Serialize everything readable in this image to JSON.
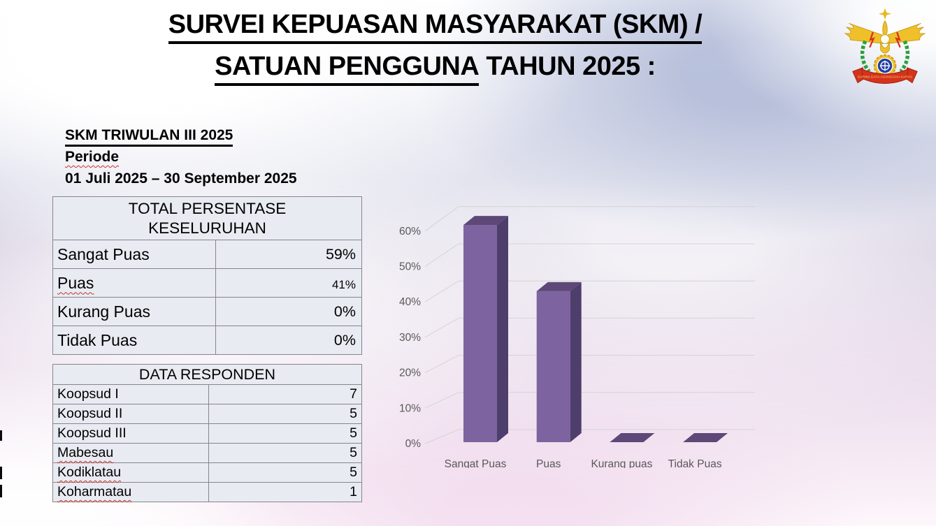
{
  "title": {
    "line1": "SURVEI KEPUASAN MASYARAKAT (SKM) /",
    "line2_underlined": "SATUAN PENGGUNA",
    "line2_rest": " TAHUN 2025 :"
  },
  "logo": {
    "motto": "SARWA DATA ASANGGHA KARYA"
  },
  "period": {
    "heading": "SKM TRIWULAN III 2025",
    "label": "Periode",
    "range": "01 Juli 2025 – 30 September 2025"
  },
  "tables": {
    "persentase": {
      "header": "TOTAL PERSENTASE KESELURUHAN",
      "rows": [
        {
          "label": "Sangat Puas",
          "value": "59%"
        },
        {
          "label": "Puas",
          "value": "41%"
        },
        {
          "label": "Kurang Puas",
          "value": "0%"
        },
        {
          "label": "Tidak Puas",
          "value": "0%"
        }
      ]
    },
    "responden": {
      "header": "DATA RESPONDEN",
      "rows": [
        {
          "label": "Koopsud I",
          "value": "7"
        },
        {
          "label": "Koopsud II",
          "value": "5"
        },
        {
          "label": "Koopsud III",
          "value": "5"
        },
        {
          "label": "Mabesau",
          "value": "5"
        },
        {
          "label": "Kodiklatau",
          "value": "5"
        },
        {
          "label": "Koharmatau",
          "value": "1"
        }
      ]
    }
  },
  "chart_data": {
    "type": "bar",
    "style": "3d-column",
    "title": "",
    "xlabel": "",
    "ylabel": "",
    "categories": [
      "Sangat Puas",
      "Puas",
      "Kurang puas",
      "Tidak Puas"
    ],
    "values": [
      59,
      41,
      0,
      0
    ],
    "ylim": [
      0,
      60
    ],
    "yticks": [
      "0%",
      "10%",
      "20%",
      "30%",
      "40%",
      "50%",
      "60%"
    ],
    "grid": true,
    "legend": "none",
    "colors": {
      "front": "#7d64a0",
      "side": "#4e3e6b",
      "top": "#5d4878",
      "grid": "#d2d2d2",
      "tick_label": "#595959"
    }
  }
}
